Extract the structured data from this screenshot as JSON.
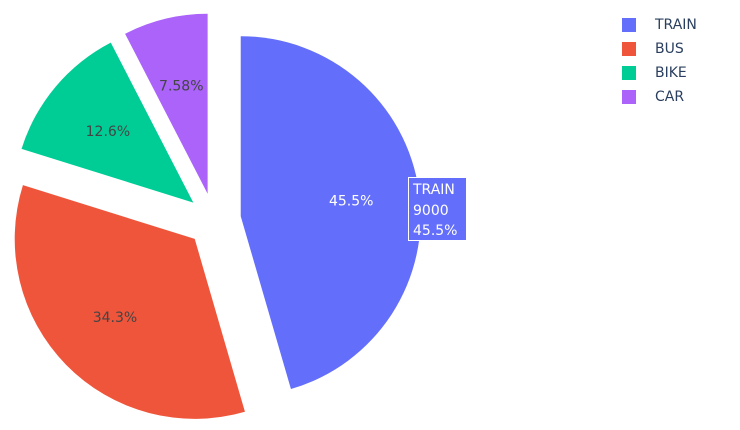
{
  "chart_data": {
    "type": "pie",
    "categories": [
      "TRAIN",
      "BUS",
      "BIKE",
      "CAR"
    ],
    "values": [
      9000,
      6790,
      2490,
      1500
    ],
    "percent_labels": [
      "45.5%",
      "34.3%",
      "12.6%",
      "7.58%"
    ],
    "colors": [
      "#636efa",
      "#ef553b",
      "#00cc96",
      "#ab63fa"
    ],
    "label_colors": [
      "#ffffff",
      "#444444",
      "#444444",
      "#444444"
    ],
    "pulled_out": [
      true,
      true,
      true,
      true
    ],
    "direction": "clockwise",
    "start": "12 o'clock",
    "legend": {
      "position": "top-right",
      "entries": [
        "TRAIN",
        "BUS",
        "BIKE",
        "CAR"
      ]
    },
    "hover": {
      "slice": "TRAIN",
      "lines": [
        "TRAIN",
        "9000",
        "45.5%"
      ]
    }
  }
}
